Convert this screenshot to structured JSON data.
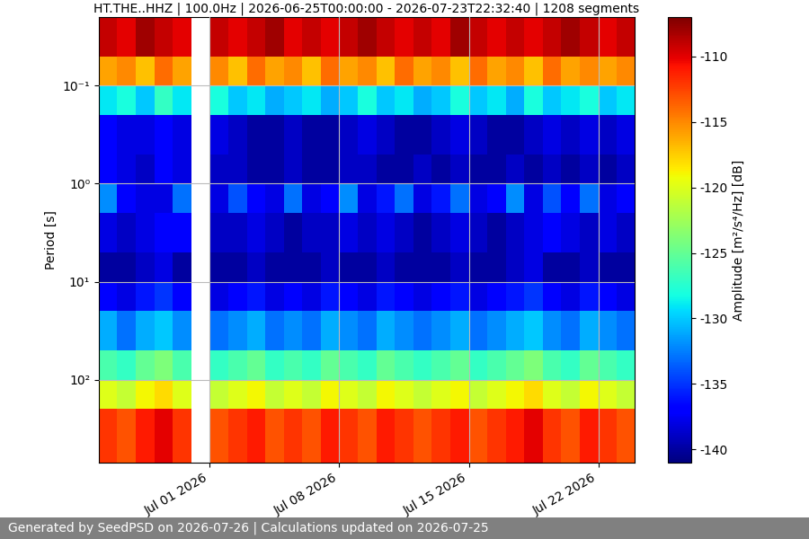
{
  "chart_data": {
    "type": "heatmap",
    "title": "HT.THE..HHZ | 100.0Hz | 2026-06-25T00:00:00 - 2026-07-23T22:32:40 | 1208 segments",
    "ylabel": "Period [s]",
    "footer": "Generated by SeedPSD on 2026-07-26 | Calculations updated on 2026-07-25",
    "time_bins": [
      "2026-06-25",
      "2026-06-26",
      "2026-06-27",
      "2026-06-28",
      "2026-06-29",
      "2026-06-30",
      "2026-07-01",
      "2026-07-02",
      "2026-07-03",
      "2026-07-04",
      "2026-07-05",
      "2026-07-06",
      "2026-07-07",
      "2026-07-08",
      "2026-07-09",
      "2026-07-10",
      "2026-07-11",
      "2026-07-12",
      "2026-07-13",
      "2026-07-14",
      "2026-07-15",
      "2026-07-16",
      "2026-07-17",
      "2026-07-18",
      "2026-07-19",
      "2026-07-20",
      "2026-07-21",
      "2026-07-22",
      "2026-07-23",
      "2026-07-24"
    ],
    "period_bins": [
      0.02,
      0.05,
      0.1,
      0.2,
      0.5,
      1,
      2,
      5,
      10,
      20,
      50,
      100,
      200,
      700
    ],
    "cells": [
      [
        -109,
        -110,
        -108,
        -109,
        -110,
        null,
        -109,
        -110,
        -109,
        -108,
        -110,
        -109,
        -110,
        -109,
        -108,
        -109,
        -110,
        -109,
        -110,
        -108,
        -109,
        -110,
        -109,
        -110,
        -109,
        -108,
        -109,
        -110,
        -109
      ],
      [
        -116,
        -115,
        -117,
        -114,
        -116,
        null,
        -115,
        -117,
        -114,
        -116,
        -115,
        -117,
        -114,
        -116,
        -115,
        -117,
        -114,
        -116,
        -115,
        -117,
        -114,
        -116,
        -115,
        -117,
        -114,
        -116,
        -115,
        -116,
        -115
      ],
      [
        -129,
        -128,
        -130,
        -127,
        -129,
        null,
        -128,
        -130,
        -129,
        -131,
        -130,
        -129,
        -131,
        -130,
        -128,
        -130,
        -129,
        -131,
        -130,
        -128,
        -130,
        -129,
        -131,
        -128,
        -130,
        -129,
        -128,
        -130,
        -129
      ],
      [
        -137,
        -138,
        -138,
        -137,
        -138,
        null,
        -138,
        -139,
        -140,
        -140,
        -139,
        -140,
        -140,
        -139,
        -138,
        -139,
        -140,
        -140,
        -139,
        -138,
        -139,
        -140,
        -140,
        -139,
        -138,
        -139,
        -138,
        -139,
        -138
      ],
      [
        -137,
        -138,
        -139,
        -137,
        -138,
        null,
        -139,
        -139,
        -140,
        -140,
        -139,
        -140,
        -140,
        -139,
        -139,
        -140,
        -140,
        -139,
        -140,
        -139,
        -140,
        -140,
        -139,
        -140,
        -139,
        -140,
        -139,
        -140,
        -139
      ],
      [
        -132,
        -137,
        -138,
        -138,
        -133,
        null,
        -138,
        -134,
        -137,
        -138,
        -133,
        -138,
        -137,
        -132,
        -138,
        -136,
        -133,
        -138,
        -136,
        -133,
        -138,
        -137,
        -132,
        -138,
        -134,
        -137,
        -133,
        -138,
        -137
      ],
      [
        -138,
        -139,
        -138,
        -137,
        -137,
        null,
        -139,
        -139,
        -138,
        -139,
        -140,
        -139,
        -139,
        -138,
        -139,
        -138,
        -139,
        -140,
        -139,
        -138,
        -139,
        -140,
        -139,
        -138,
        -137,
        -138,
        -139,
        -138,
        -139
      ],
      [
        -140,
        -140,
        -139,
        -138,
        -140,
        null,
        -140,
        -140,
        -139,
        -140,
        -140,
        -140,
        -139,
        -140,
        -140,
        -139,
        -140,
        -140,
        -140,
        -139,
        -140,
        -140,
        -139,
        -138,
        -140,
        -140,
        -139,
        -140,
        -140
      ],
      [
        -137,
        -138,
        -136,
        -135,
        -137,
        null,
        -138,
        -137,
        -136,
        -138,
        -137,
        -138,
        -136,
        -137,
        -138,
        -136,
        -137,
        -138,
        -137,
        -136,
        -138,
        -137,
        -136,
        -135,
        -137,
        -138,
        -136,
        -137,
        -138
      ],
      [
        -131,
        -133,
        -131,
        -130,
        -132,
        null,
        -133,
        -132,
        -131,
        -133,
        -132,
        -133,
        -131,
        -132,
        -133,
        -131,
        -132,
        -133,
        -132,
        -131,
        -133,
        -132,
        -131,
        -130,
        -132,
        -133,
        -131,
        -132,
        -133
      ],
      [
        -126,
        -127,
        -125,
        -124,
        -126,
        null,
        -127,
        -126,
        -125,
        -127,
        -126,
        -127,
        -125,
        -126,
        -127,
        -125,
        -126,
        -127,
        -126,
        -125,
        -127,
        -126,
        -125,
        -124,
        -126,
        -127,
        -125,
        -126,
        -127
      ],
      [
        -120,
        -121,
        -119,
        -118,
        -120,
        null,
        -121,
        -120,
        -119,
        -121,
        -120,
        -121,
        -119,
        -120,
        -121,
        -119,
        -120,
        -121,
        -120,
        -119,
        -121,
        -120,
        -119,
        -118,
        -120,
        -121,
        -119,
        -120,
        -121
      ],
      [
        -112,
        -113,
        -111,
        -110,
        -112,
        null,
        -113,
        -112,
        -111,
        -113,
        -112,
        -113,
        -111,
        -112,
        -113,
        -111,
        -112,
        -113,
        -112,
        -111,
        -113,
        -112,
        -111,
        -110,
        -112,
        -113,
        -111,
        -112,
        -113
      ]
    ],
    "xlim": [
      "2026-06-25T00:00:00",
      "2026-07-23T22:32:40"
    ],
    "xticks": [
      {
        "value": "2026-07-01",
        "label": "Jul 01 2026"
      },
      {
        "value": "2026-07-08",
        "label": "Jul 08 2026"
      },
      {
        "value": "2026-07-15",
        "label": "Jul 15 2026"
      },
      {
        "value": "2026-07-22",
        "label": "Jul 22 2026"
      }
    ],
    "ylim": [
      700,
      0.02
    ],
    "yticks": [
      {
        "value": 0.1,
        "label": "10⁻¹"
      },
      {
        "value": 1,
        "label": "10⁰"
      },
      {
        "value": 10,
        "label": "10¹"
      },
      {
        "value": 100,
        "label": "10²"
      }
    ],
    "log": "y",
    "grid": true,
    "colorbar_label": "Amplitude [m²/s⁴/Hz] [dB]",
    "colorbar_range": [
      -141,
      -107
    ],
    "colorbar_ticks": [
      -140,
      -135,
      -130,
      -125,
      -120,
      -115,
      -110
    ]
  }
}
